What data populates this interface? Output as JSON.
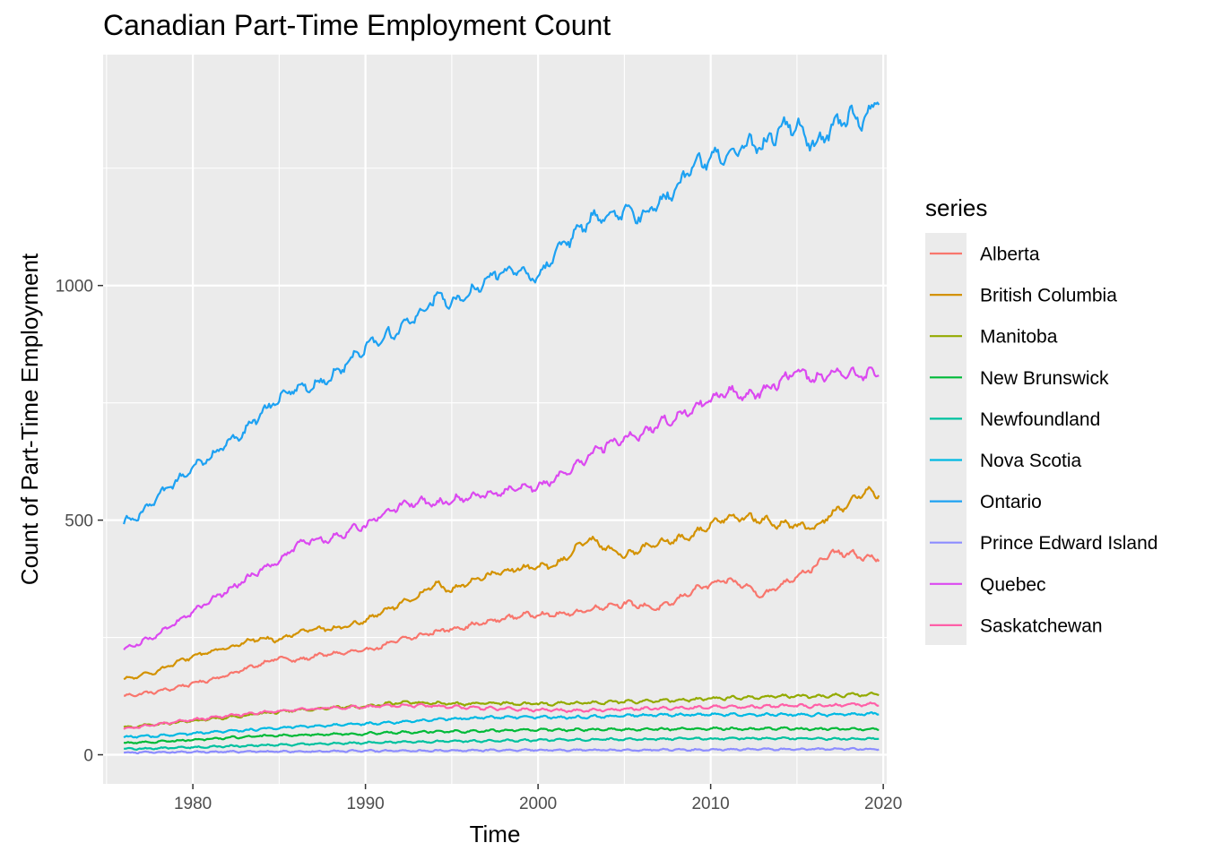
{
  "chart_data": {
    "type": "line",
    "title": "Canadian Part-Time Employment Count",
    "xlabel": "Time",
    "ylabel": "Count of Part-Time Employment",
    "xlim": [
      1974.8,
      2020.2
    ],
    "ylim": [
      -62,
      1492
    ],
    "x_ticks": [
      1980,
      1990,
      2000,
      2010,
      2020
    ],
    "y_ticks": [
      0,
      500,
      1000
    ],
    "grid": true,
    "legend": {
      "title": "series",
      "position": "right"
    },
    "series": [
      {
        "name": "Alberta",
        "color": "#F8766D",
        "points": [
          [
            1976,
            125
          ],
          [
            1977,
            130
          ],
          [
            1978,
            135
          ],
          [
            1979,
            143
          ],
          [
            1980,
            152
          ],
          [
            1981,
            160
          ],
          [
            1982,
            170
          ],
          [
            1983,
            182
          ],
          [
            1984,
            195
          ],
          [
            1985,
            207
          ],
          [
            1986,
            200
          ],
          [
            1987,
            210
          ],
          [
            1988,
            215
          ],
          [
            1989,
            218
          ],
          [
            1990,
            222
          ],
          [
            1991,
            232
          ],
          [
            1992,
            245
          ],
          [
            1993,
            252
          ],
          [
            1994,
            262
          ],
          [
            1995,
            268
          ],
          [
            1996,
            275
          ],
          [
            1997,
            282
          ],
          [
            1998,
            290
          ],
          [
            1999,
            297
          ],
          [
            2000,
            300
          ],
          [
            2001,
            298
          ],
          [
            2002,
            302
          ],
          [
            2003,
            310
          ],
          [
            2004,
            318
          ],
          [
            2005,
            322
          ],
          [
            2006,
            318
          ],
          [
            2007,
            312
          ],
          [
            2008,
            328
          ],
          [
            2009,
            352
          ],
          [
            2010,
            362
          ],
          [
            2011,
            372
          ],
          [
            2012,
            360
          ],
          [
            2013,
            340
          ],
          [
            2014,
            360
          ],
          [
            2015,
            382
          ],
          [
            2016,
            400
          ],
          [
            2017,
            430
          ],
          [
            2018,
            428
          ],
          [
            2019,
            420
          ],
          [
            2019.8,
            418
          ]
        ]
      },
      {
        "name": "British Columbia",
        "color": "#D39200",
        "points": [
          [
            1976,
            160
          ],
          [
            1977,
            168
          ],
          [
            1978,
            180
          ],
          [
            1979,
            195
          ],
          [
            1980,
            210
          ],
          [
            1981,
            220
          ],
          [
            1982,
            228
          ],
          [
            1983,
            240
          ],
          [
            1984,
            248
          ],
          [
            1985,
            245
          ],
          [
            1986,
            260
          ],
          [
            1987,
            270
          ],
          [
            1988,
            268
          ],
          [
            1989,
            275
          ],
          [
            1990,
            285
          ],
          [
            1991,
            305
          ],
          [
            1992,
            320
          ],
          [
            1993,
            335
          ],
          [
            1994,
            365
          ],
          [
            1995,
            350
          ],
          [
            1996,
            368
          ],
          [
            1997,
            382
          ],
          [
            1998,
            390
          ],
          [
            1999,
            398
          ],
          [
            2000,
            400
          ],
          [
            2001,
            402
          ],
          [
            2002,
            435
          ],
          [
            2003,
            460
          ],
          [
            2004,
            440
          ],
          [
            2005,
            425
          ],
          [
            2006,
            440
          ],
          [
            2007,
            450
          ],
          [
            2008,
            458
          ],
          [
            2009,
            470
          ],
          [
            2010,
            490
          ],
          [
            2011,
            510
          ],
          [
            2012,
            505
          ],
          [
            2013,
            500
          ],
          [
            2014,
            490
          ],
          [
            2015,
            490
          ],
          [
            2016,
            480
          ],
          [
            2017,
            515
          ],
          [
            2018,
            535
          ],
          [
            2019,
            560
          ],
          [
            2019.8,
            555
          ]
        ]
      },
      {
        "name": "Manitoba",
        "color": "#93AA00",
        "points": [
          [
            1976,
            58
          ],
          [
            1978,
            65
          ],
          [
            1980,
            72
          ],
          [
            1982,
            80
          ],
          [
            1984,
            88
          ],
          [
            1986,
            95
          ],
          [
            1988,
            100
          ],
          [
            1990,
            103
          ],
          [
            1992,
            112
          ],
          [
            1994,
            110
          ],
          [
            1996,
            108
          ],
          [
            1998,
            110
          ],
          [
            2000,
            108
          ],
          [
            2002,
            110
          ],
          [
            2004,
            112
          ],
          [
            2006,
            114
          ],
          [
            2008,
            116
          ],
          [
            2010,
            120
          ],
          [
            2012,
            122
          ],
          [
            2014,
            125
          ],
          [
            2016,
            124
          ],
          [
            2018,
            128
          ],
          [
            2019.8,
            128
          ]
        ]
      },
      {
        "name": "New Brunswick",
        "color": "#00BA38",
        "points": [
          [
            1976,
            25
          ],
          [
            1978,
            28
          ],
          [
            1980,
            32
          ],
          [
            1982,
            36
          ],
          [
            1984,
            40
          ],
          [
            1986,
            42
          ],
          [
            1988,
            44
          ],
          [
            1990,
            45
          ],
          [
            1992,
            48
          ],
          [
            1994,
            50
          ],
          [
            1996,
            50
          ],
          [
            1998,
            52
          ],
          [
            2000,
            53
          ],
          [
            2002,
            53
          ],
          [
            2004,
            54
          ],
          [
            2006,
            54
          ],
          [
            2008,
            55
          ],
          [
            2010,
            56
          ],
          [
            2012,
            55
          ],
          [
            2014,
            56
          ],
          [
            2016,
            55
          ],
          [
            2018,
            55
          ],
          [
            2019.8,
            55
          ]
        ]
      },
      {
        "name": "Newfoundland",
        "color": "#00C19F",
        "points": [
          [
            1976,
            12
          ],
          [
            1978,
            14
          ],
          [
            1980,
            16
          ],
          [
            1982,
            18
          ],
          [
            1984,
            20
          ],
          [
            1986,
            22
          ],
          [
            1988,
            24
          ],
          [
            1990,
            26
          ],
          [
            1992,
            27
          ],
          [
            1994,
            28
          ],
          [
            1996,
            29
          ],
          [
            1998,
            30
          ],
          [
            2000,
            31
          ],
          [
            2002,
            32
          ],
          [
            2004,
            33
          ],
          [
            2006,
            33
          ],
          [
            2008,
            34
          ],
          [
            2010,
            34
          ],
          [
            2012,
            35
          ],
          [
            2014,
            35
          ],
          [
            2016,
            35
          ],
          [
            2018,
            34
          ],
          [
            2019.8,
            34
          ]
        ]
      },
      {
        "name": "Nova Scotia",
        "color": "#00B9E3",
        "points": [
          [
            1976,
            38
          ],
          [
            1978,
            40
          ],
          [
            1980,
            45
          ],
          [
            1982,
            50
          ],
          [
            1984,
            55
          ],
          [
            1986,
            60
          ],
          [
            1988,
            63
          ],
          [
            1990,
            66
          ],
          [
            1992,
            70
          ],
          [
            1994,
            75
          ],
          [
            1996,
            78
          ],
          [
            1998,
            80
          ],
          [
            2000,
            80
          ],
          [
            2002,
            80
          ],
          [
            2004,
            82
          ],
          [
            2006,
            84
          ],
          [
            2008,
            85
          ],
          [
            2010,
            86
          ],
          [
            2012,
            85
          ],
          [
            2014,
            86
          ],
          [
            2016,
            85
          ],
          [
            2018,
            86
          ],
          [
            2019.8,
            88
          ]
        ]
      },
      {
        "name": "Ontario",
        "color": "#1DA1F2",
        "points": [
          [
            1976,
            495
          ],
          [
            1977,
            515
          ],
          [
            1978,
            548
          ],
          [
            1979,
            580
          ],
          [
            1980,
            610
          ],
          [
            1981,
            635
          ],
          [
            1982,
            665
          ],
          [
            1983,
            690
          ],
          [
            1984,
            725
          ],
          [
            1985,
            760
          ],
          [
            1986,
            780
          ],
          [
            1987,
            790
          ],
          [
            1988,
            805
          ],
          [
            1989,
            840
          ],
          [
            1990,
            870
          ],
          [
            1991,
            890
          ],
          [
            1992,
            905
          ],
          [
            1993,
            935
          ],
          [
            1994,
            975
          ],
          [
            1995,
            960
          ],
          [
            1996,
            980
          ],
          [
            1997,
            1015
          ],
          [
            1998,
            1030
          ],
          [
            1999,
            1030
          ],
          [
            2000,
            1010
          ],
          [
            2001,
            1080
          ],
          [
            2002,
            1100
          ],
          [
            2003,
            1140
          ],
          [
            2004,
            1150
          ],
          [
            2005,
            1165
          ],
          [
            2006,
            1145
          ],
          [
            2007,
            1175
          ],
          [
            2008,
            1210
          ],
          [
            2009,
            1250
          ],
          [
            2010,
            1270
          ],
          [
            2011,
            1280
          ],
          [
            2012,
            1300
          ],
          [
            2013,
            1295
          ],
          [
            2014,
            1330
          ],
          [
            2015,
            1345
          ],
          [
            2016,
            1300
          ],
          [
            2017,
            1330
          ],
          [
            2018,
            1360
          ],
          [
            2019,
            1355
          ],
          [
            2019.8,
            1405
          ]
        ]
      },
      {
        "name": "Prince Edward Island",
        "color": "#8C8CFF",
        "points": [
          [
            1976,
            5
          ],
          [
            1980,
            6
          ],
          [
            1985,
            7
          ],
          [
            1990,
            8
          ],
          [
            1995,
            9
          ],
          [
            2000,
            10
          ],
          [
            2005,
            10
          ],
          [
            2010,
            11
          ],
          [
            2015,
            12
          ],
          [
            2019.8,
            12
          ]
        ]
      },
      {
        "name": "Quebec",
        "color": "#DB49F0",
        "points": [
          [
            1976,
            225
          ],
          [
            1977,
            240
          ],
          [
            1978,
            258
          ],
          [
            1979,
            280
          ],
          [
            1980,
            305
          ],
          [
            1981,
            328
          ],
          [
            1982,
            350
          ],
          [
            1983,
            372
          ],
          [
            1984,
            395
          ],
          [
            1985,
            415
          ],
          [
            1986,
            445
          ],
          [
            1987,
            460
          ],
          [
            1988,
            460
          ],
          [
            1989,
            478
          ],
          [
            1990,
            488
          ],
          [
            1991,
            515
          ],
          [
            1992,
            530
          ],
          [
            1993,
            540
          ],
          [
            1994,
            535
          ],
          [
            1995,
            545
          ],
          [
            1996,
            550
          ],
          [
            1997,
            555
          ],
          [
            1998,
            562
          ],
          [
            1999,
            570
          ],
          [
            2000,
            570
          ],
          [
            2001,
            588
          ],
          [
            2002,
            608
          ],
          [
            2003,
            640
          ],
          [
            2004,
            660
          ],
          [
            2005,
            675
          ],
          [
            2006,
            680
          ],
          [
            2007,
            705
          ],
          [
            2008,
            720
          ],
          [
            2009,
            740
          ],
          [
            2010,
            755
          ],
          [
            2011,
            775
          ],
          [
            2012,
            765
          ],
          [
            2013,
            775
          ],
          [
            2014,
            795
          ],
          [
            2015,
            820
          ],
          [
            2016,
            800
          ],
          [
            2017,
            815
          ],
          [
            2018,
            810
          ],
          [
            2019,
            810
          ],
          [
            2019.8,
            815
          ]
        ]
      },
      {
        "name": "Saskatchewan",
        "color": "#FF5FA8",
        "points": [
          [
            1976,
            55
          ],
          [
            1978,
            65
          ],
          [
            1980,
            75
          ],
          [
            1982,
            82
          ],
          [
            1984,
            90
          ],
          [
            1986,
            96
          ],
          [
            1988,
            100
          ],
          [
            1990,
            102
          ],
          [
            1992,
            105
          ],
          [
            1994,
            104
          ],
          [
            1996,
            100
          ],
          [
            1998,
            98
          ],
          [
            2000,
            96
          ],
          [
            2002,
            94
          ],
          [
            2004,
            96
          ],
          [
            2006,
            98
          ],
          [
            2008,
            100
          ],
          [
            2010,
            102
          ],
          [
            2012,
            102
          ],
          [
            2014,
            104
          ],
          [
            2016,
            104
          ],
          [
            2018,
            106
          ],
          [
            2019.8,
            108
          ]
        ]
      }
    ]
  }
}
